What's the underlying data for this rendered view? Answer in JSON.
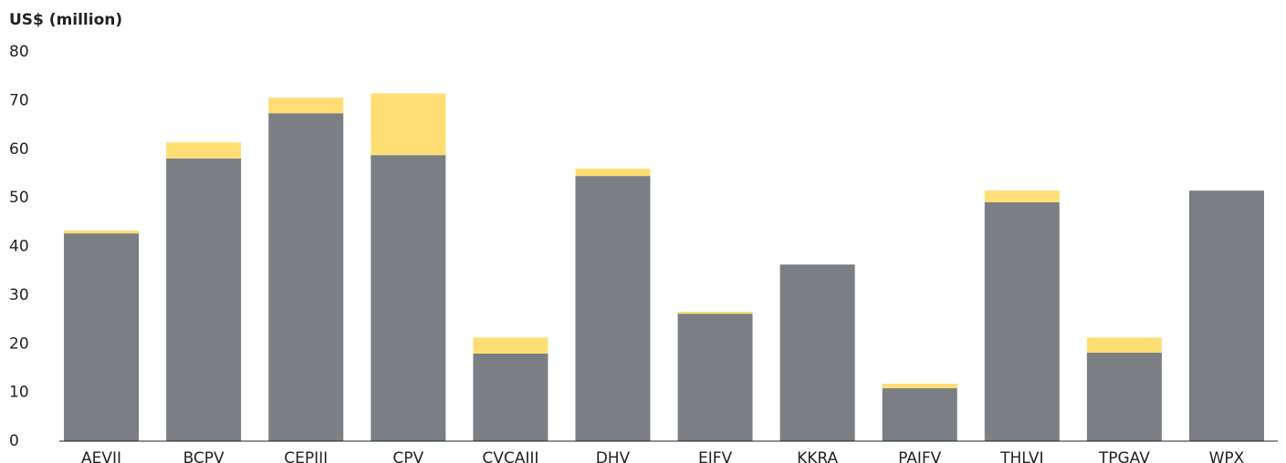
{
  "chart_data": {
    "type": "stacked_bar",
    "y_label": "US$ (million)",
    "categories": [
      "AEVII",
      "BCPV",
      "CEPIII",
      "CPV",
      "CVCAIII",
      "DHV",
      "EIFV",
      "KKRA",
      "PAIFV",
      "THLVI",
      "TPGAV",
      "WPX"
    ],
    "series": [
      {
        "color": "#7b7f83",
        "values": [
          42.7,
          58.1,
          67.4,
          58.8,
          18.0,
          54.5,
          26.2,
          36.3,
          10.9,
          49.1,
          18.2,
          51.5
        ]
      },
      {
        "color": "#fede74",
        "values": [
          0.6,
          3.3,
          3.2,
          12.7,
          3.3,
          1.5,
          0.4,
          0,
          0.9,
          2.4,
          3.1,
          0
        ]
      }
    ],
    "ylim": [
      0,
      80
    ],
    "yticks": [
      0,
      10,
      20,
      30,
      40,
      50,
      60,
      70,
      80
    ]
  }
}
